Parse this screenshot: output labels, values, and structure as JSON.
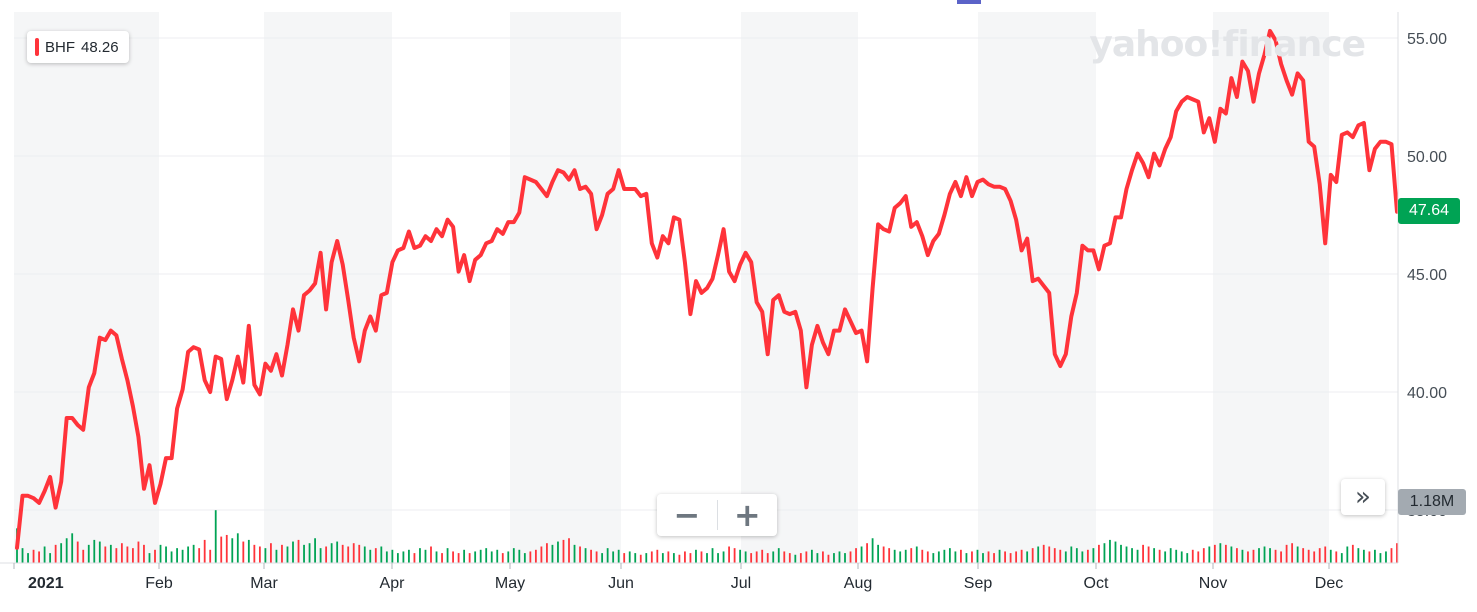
{
  "legend": {
    "symbol": "BHF",
    "value": "48.26",
    "color": "#ff333a"
  },
  "watermark": {
    "text": "yahoo!finance"
  },
  "price_tag": {
    "text": "47.64",
    "color": "#00a354"
  },
  "volume_tag": {
    "text": "1.18M"
  },
  "zoom": {
    "minus_label": "−",
    "plus_label": "+"
  },
  "forward": {
    "label": "»"
  },
  "colors": {
    "line": "#ff333a",
    "volume_up": "#00a354",
    "volume_down": "#ff333a",
    "band": "#f5f6f7",
    "grid": "#eceef0"
  },
  "chart_data": {
    "type": "line",
    "x_tick_labels": [
      "2021",
      "Feb",
      "Mar",
      "Apr",
      "May",
      "Jun",
      "Jul",
      "Aug",
      "Sep",
      "Oct",
      "Nov",
      "Dec"
    ],
    "y_tick_labels": [
      "55.00",
      "50.00",
      "45.00",
      "40.00",
      "35.00"
    ],
    "ylim": [
      32.5,
      56.5
    ],
    "grid": true,
    "series": [
      {
        "name": "BHF",
        "values": [
          33.4,
          35.6,
          35.6,
          35.5,
          35.3,
          35.8,
          36.4,
          35.1,
          36.2,
          38.9,
          38.9,
          38.6,
          38.4,
          40.2,
          40.8,
          42.3,
          42.2,
          42.6,
          42.4,
          41.4,
          40.5,
          39.4,
          38.1,
          35.9,
          36.9,
          35.3,
          36.1,
          37.2,
          37.2,
          39.3,
          40.1,
          41.7,
          41.9,
          41.8,
          40.5,
          40,
          41.5,
          41.4,
          39.7,
          40.5,
          41.5,
          40.4,
          42.8,
          40.3,
          39.9,
          41.2,
          40.9,
          41.6,
          40.7,
          42,
          43.5,
          42.6,
          44.1,
          44.3,
          44.6,
          45.9,
          43.5,
          45.5,
          46.4,
          45.4,
          43.9,
          42.3,
          41.3,
          42.6,
          43.2,
          42.6,
          44.1,
          44.2,
          45.5,
          46,
          46.1,
          46.8,
          46.1,
          46.2,
          46.6,
          46.4,
          46.9,
          46.6,
          47.3,
          47,
          45.1,
          45.8,
          44.7,
          45.6,
          45.8,
          46.3,
          46.4,
          46.9,
          46.7,
          47.2,
          47.2,
          47.6,
          49.1,
          49,
          48.9,
          48.6,
          48.3,
          48.9,
          49.4,
          49.3,
          49,
          49.4,
          48.6,
          48.7,
          48.4,
          46.9,
          47.5,
          48.4,
          48.6,
          49.4,
          48.6,
          48.6,
          48.6,
          48.3,
          48.4,
          46.3,
          45.7,
          46.6,
          46.3,
          47.4,
          47.3,
          45.5,
          43.3,
          44.7,
          44.2,
          44.4,
          44.8,
          45.8,
          46.9,
          45.1,
          44.7,
          45.4,
          45.9,
          45.5,
          43.8,
          43.4,
          41.6,
          43.9,
          44.1,
          43.4,
          43.3,
          43.4,
          42.6,
          40.2,
          42,
          42.8,
          42.1,
          41.6,
          42.6,
          42.6,
          43.5,
          43,
          42.5,
          42.6,
          41.3,
          44.4,
          47.1,
          46.9,
          46.8,
          47.8,
          48,
          48.3,
          47,
          47.2,
          46.6,
          45.8,
          46.4,
          46.7,
          47.5,
          48.4,
          48.9,
          48.3,
          49.1,
          48.3,
          48.9,
          49,
          48.8,
          48.7,
          48.7,
          48.6,
          48.1,
          47.3,
          46,
          46.5,
          44.7,
          44.8,
          44.5,
          44.2,
          41.6,
          41.1,
          41.6,
          43.2,
          44.2,
          46.2,
          46,
          46,
          45.2,
          46.2,
          46.3,
          47.4,
          47.4,
          48.6,
          49.4,
          50.1,
          49.7,
          49.1,
          50.1,
          49.6,
          50.3,
          50.8,
          51.9,
          52.3,
          52.5,
          52.4,
          52.3,
          51,
          51.6,
          50.6,
          52,
          51.8,
          53.3,
          52.5,
          54,
          53.6,
          52.3,
          53.5,
          54.3,
          55.3,
          54.9,
          53.9,
          53.2,
          52.6,
          53.5,
          53.2,
          50.6,
          50.4,
          48.8,
          46.3,
          49.2,
          48.9,
          50.9,
          51,
          50.8,
          51.3,
          51.4,
          49.4,
          50.3,
          50.6,
          50.6,
          50.5,
          47.64
        ]
      },
      {
        "name": "Volume",
        "values": [
          1.05,
          0.45,
          0.3,
          0.4,
          0.35,
          0.5,
          0.3,
          0.55,
          0.6,
          0.75,
          0.9,
          0.65,
          0.4,
          0.55,
          0.7,
          0.65,
          0.5,
          0.55,
          0.45,
          0.6,
          0.5,
          0.45,
          0.65,
          0.55,
          0.3,
          0.4,
          0.55,
          0.5,
          0.35,
          0.45,
          0.4,
          0.5,
          0.55,
          0.45,
          0.7,
          0.4,
          1.6,
          0.8,
          0.85,
          0.75,
          0.9,
          0.65,
          0.7,
          0.55,
          0.5,
          0.45,
          0.6,
          0.4,
          0.55,
          0.5,
          0.65,
          0.7,
          0.55,
          0.6,
          0.75,
          0.45,
          0.5,
          0.6,
          0.65,
          0.55,
          0.5,
          0.6,
          0.55,
          0.5,
          0.4,
          0.45,
          0.5,
          0.35,
          0.4,
          0.3,
          0.35,
          0.4,
          0.3,
          0.45,
          0.4,
          0.5,
          0.35,
          0.3,
          0.45,
          0.35,
          0.3,
          0.4,
          0.3,
          0.35,
          0.4,
          0.45,
          0.35,
          0.4,
          0.3,
          0.35,
          0.45,
          0.4,
          0.3,
          0.35,
          0.4,
          0.5,
          0.6,
          0.55,
          0.65,
          0.7,
          0.75,
          0.55,
          0.5,
          0.45,
          0.4,
          0.35,
          0.3,
          0.45,
          0.35,
          0.4,
          0.3,
          0.35,
          0.3,
          0.25,
          0.3,
          0.35,
          0.4,
          0.3,
          0.35,
          0.3,
          0.25,
          0.35,
          0.3,
          0.4,
          0.35,
          0.3,
          0.45,
          0.3,
          0.35,
          0.5,
          0.45,
          0.4,
          0.35,
          0.3,
          0.35,
          0.4,
          0.3,
          0.35,
          0.45,
          0.35,
          0.3,
          0.25,
          0.3,
          0.35,
          0.4,
          0.3,
          0.35,
          0.25,
          0.3,
          0.35,
          0.3,
          0.35,
          0.45,
          0.5,
          0.6,
          0.75,
          0.55,
          0.5,
          0.45,
          0.4,
          0.35,
          0.4,
          0.45,
          0.5,
          0.4,
          0.35,
          0.3,
          0.35,
          0.4,
          0.45,
          0.35,
          0.4,
          0.3,
          0.35,
          0.4,
          0.3,
          0.35,
          0.3,
          0.4,
          0.35,
          0.3,
          0.35,
          0.4,
          0.35,
          0.45,
          0.5,
          0.55,
          0.5,
          0.45,
          0.4,
          0.35,
          0.5,
          0.45,
          0.35,
          0.4,
          0.45,
          0.55,
          0.6,
          0.7,
          0.65,
          0.55,
          0.5,
          0.45,
          0.4,
          0.55,
          0.5,
          0.45,
          0.4,
          0.35,
          0.45,
          0.4,
          0.35,
          0.3,
          0.4,
          0.35,
          0.45,
          0.5,
          0.55,
          0.6,
          0.55,
          0.5,
          0.45,
          0.4,
          0.35,
          0.4,
          0.45,
          0.5,
          0.45,
          0.4,
          0.35,
          0.55,
          0.6,
          0.5,
          0.45,
          0.4,
          0.35,
          0.45,
          0.5,
          0.4,
          0.35,
          0.3,
          0.5,
          0.55,
          0.45,
          0.4,
          0.35,
          0.4,
          0.3,
          0.35,
          0.45,
          0.6,
          0.4,
          0.35,
          2.05
        ]
      }
    ]
  }
}
